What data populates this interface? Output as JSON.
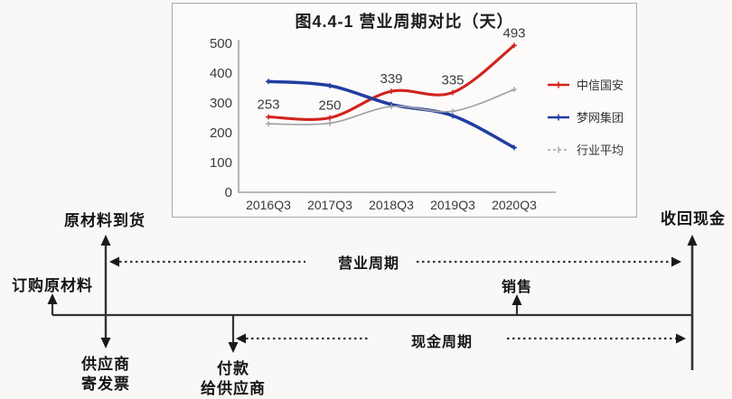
{
  "chart_data": {
    "type": "line",
    "title": "图4.4-1 营业周期对比（天）",
    "categories": [
      "2016Q3",
      "2017Q3",
      "2018Q3",
      "2019Q3",
      "2020Q3"
    ],
    "series": [
      {
        "name": "中信国安",
        "color": "#d2231e",
        "style": "solid",
        "values": [
          253,
          250,
          339,
          335,
          493
        ],
        "data_labels": [
          "253",
          "250",
          "339",
          "335",
          "493"
        ]
      },
      {
        "name": "梦网集团",
        "color": "#203da0",
        "style": "solid",
        "values": [
          372,
          358,
          295,
          257,
          150
        ]
      },
      {
        "name": "行业平均",
        "color": "#9fa3a7",
        "style": "dashed-thin",
        "values": [
          230,
          232,
          288,
          272,
          345
        ]
      }
    ],
    "ylim": [
      0,
      500
    ],
    "ytick_step": 100,
    "xlabel": "",
    "ylabel": "",
    "legend_position": "right",
    "grid": false
  },
  "diagram": {
    "raw_material_arrival": "原材料到货",
    "order_raw_materials": "订购原材料",
    "collect_cash": "收回现金",
    "operating_cycle": "营业周期",
    "sales": "销售",
    "cash_cycle": "现金周期",
    "supplier_invoice_line1": "供应商",
    "supplier_invoice_line2": "寄发票",
    "pay_supplier_line1": "付款",
    "pay_supplier_line2": "给供应商"
  }
}
